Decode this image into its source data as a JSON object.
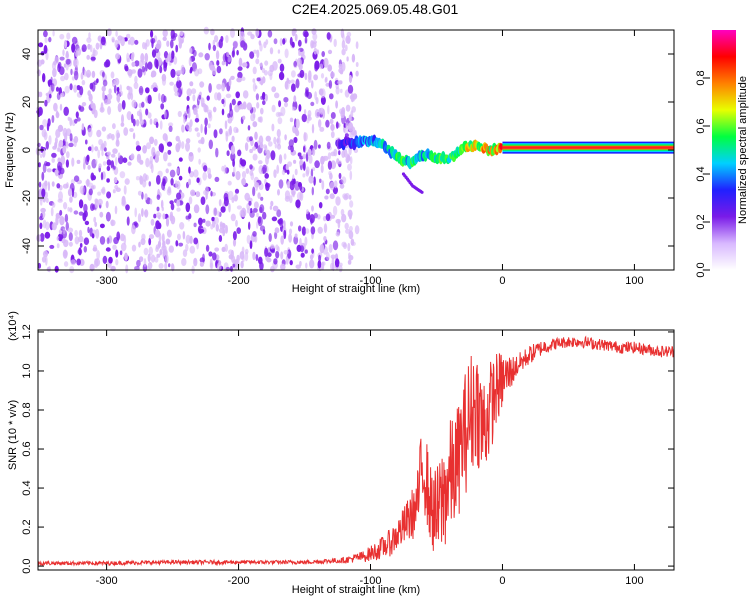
{
  "title": "C2E4.2025.069.05.48.G01",
  "colors": {
    "trace": "#e83030",
    "noise_light": "#d8b8f8",
    "noise_dark": "#7a1be8",
    "carrier": "#ff2020",
    "background": "#ffffff"
  },
  "chart_data": [
    {
      "type": "heatmap",
      "xlabel": "Height of straight line (km)",
      "ylabel": "Frequency (Hz)",
      "xlim": [
        -352,
        130
      ],
      "ylim": [
        -50,
        50
      ],
      "x_ticks": [
        -300,
        -200,
        -100,
        0,
        100
      ],
      "x_tick_labels": [
        "-300",
        "-200",
        "-100",
        "0",
        "100"
      ],
      "y_ticks": [
        -40,
        -20,
        0,
        20,
        40
      ],
      "y_tick_labels": [
        "-40",
        "-20",
        "0",
        "20",
        "40"
      ],
      "colorbar": {
        "label": "Normalized spectral amplitude",
        "range": [
          0,
          1
        ],
        "ticks": [
          0.0,
          0.2,
          0.4,
          0.6,
          0.8
        ],
        "tick_labels": [
          "0.0",
          "0.2",
          "0.4",
          "0.6",
          "0.8"
        ],
        "palette": [
          "#ffffff",
          "#d8b8ff",
          "#7a1be8",
          "#2020ff",
          "#00d0ff",
          "#00ff40",
          "#e8ff00",
          "#ff8000",
          "#ff0000",
          "#ff00c0"
        ]
      },
      "noise_extent_x": [
        -352,
        -110
      ],
      "carrier_path": {
        "x": [
          -125,
          -110,
          -100,
          -90,
          -80,
          -70,
          -60,
          -50,
          -40,
          -30,
          -20,
          -10,
          0,
          130
        ],
        "freq_hz": [
          3,
          3,
          4,
          2,
          -3,
          -5,
          -2,
          -3,
          -4,
          1,
          2,
          0,
          1,
          1
        ],
        "amplitude": [
          0.3,
          0.45,
          0.5,
          0.55,
          0.6,
          0.6,
          0.55,
          0.6,
          0.65,
          0.75,
          0.8,
          0.85,
          1.0,
          1.0
        ]
      },
      "tail_path": {
        "x": [
          -75,
          -68,
          -60
        ],
        "freq_hz": [
          -10,
          -15,
          -18
        ]
      }
    },
    {
      "type": "line",
      "xlabel": "Height of straight line (km)",
      "ylabel": "SNR (10 * v/v)",
      "y_scale_label": "(x10⁴)",
      "xlim": [
        -352,
        130
      ],
      "ylim": [
        -0.02,
        1.21
      ],
      "x_ticks": [
        -300,
        -200,
        -100,
        0,
        100
      ],
      "x_tick_labels": [
        "-300",
        "-200",
        "-100",
        "0",
        "100"
      ],
      "y_ticks": [
        0.0,
        0.2,
        0.4,
        0.6,
        0.8,
        1.0,
        1.2
      ],
      "y_tick_labels": [
        "0.0",
        "0.2",
        "0.4",
        "0.6",
        "0.8",
        "1.0",
        "1.2"
      ],
      "series": [
        {
          "x": [
            -352,
            -300,
            -250,
            -200,
            -150,
            -120,
            -105,
            -95,
            -85,
            -75,
            -65,
            -60,
            -55,
            -50,
            -45,
            -40,
            -35,
            -30,
            -25,
            -20,
            -15,
            -10,
            -5,
            0,
            10,
            20,
            30,
            40,
            50,
            60,
            70,
            80,
            90,
            100,
            110,
            120,
            130
          ],
          "y": [
            0.015,
            0.015,
            0.02,
            0.02,
            0.02,
            0.03,
            0.05,
            0.08,
            0.12,
            0.2,
            0.3,
            0.55,
            0.32,
            0.25,
            0.35,
            0.45,
            0.5,
            0.65,
            0.75,
            0.85,
            0.7,
            0.8,
            0.9,
            0.95,
            1.02,
            1.08,
            1.12,
            1.14,
            1.15,
            1.15,
            1.14,
            1.13,
            1.12,
            1.12,
            1.11,
            1.1,
            1.1
          ],
          "noise_amplitude": [
            0.01,
            0.01,
            0.01,
            0.01,
            0.01,
            0.015,
            0.03,
            0.05,
            0.07,
            0.1,
            0.15,
            0.25,
            0.2,
            0.25,
            0.3,
            0.3,
            0.3,
            0.3,
            0.35,
            0.3,
            0.3,
            0.25,
            0.2,
            0.15,
            0.06,
            0.05,
            0.04,
            0.03,
            0.03,
            0.03,
            0.03,
            0.03,
            0.03,
            0.03,
            0.03,
            0.03,
            0.03
          ]
        }
      ]
    }
  ]
}
